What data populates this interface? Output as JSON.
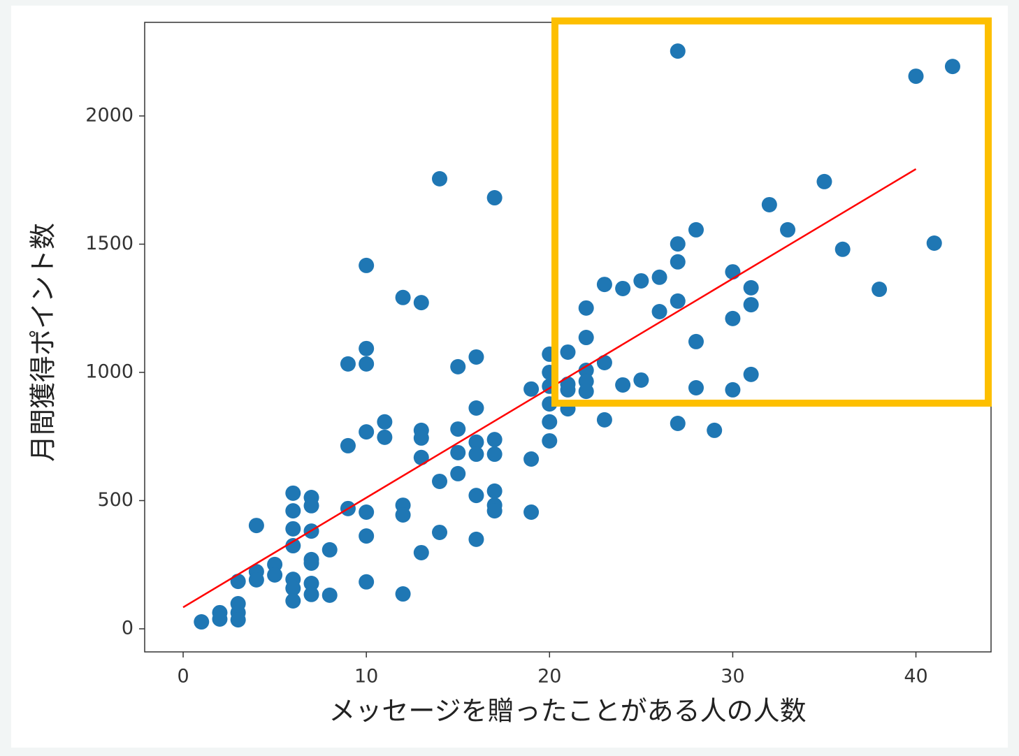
{
  "chart_data": {
    "type": "scatter",
    "xlabel": "メッセージを贈ったことがある人の人数",
    "ylabel": "月間獲得ポイント数",
    "xlim": [
      -2.1,
      44.1
    ],
    "ylim": [
      -90,
      2365
    ],
    "xticks": [
      0,
      10,
      20,
      30,
      40
    ],
    "yticks": [
      0,
      500,
      1000,
      1500,
      2000
    ],
    "points": {
      "color": "#1f77b4",
      "x": [
        1,
        2,
        2,
        3,
        3,
        3,
        3,
        4,
        4,
        4,
        5,
        5,
        6,
        6,
        6,
        6,
        6,
        6,
        6,
        7,
        7,
        7,
        7,
        7,
        7,
        7,
        8,
        8,
        9,
        9,
        9,
        10,
        10,
        10,
        10,
        10,
        10,
        10,
        11,
        11,
        12,
        12,
        12,
        12,
        13,
        13,
        13,
        13,
        13,
        14,
        14,
        14,
        15,
        15,
        15,
        15,
        16,
        16,
        16,
        16,
        16,
        16,
        17,
        17,
        17,
        17,
        17,
        17,
        19,
        19,
        19,
        20,
        20,
        20,
        20,
        20,
        20,
        21,
        21,
        21,
        21,
        22,
        22,
        22,
        22,
        22,
        23,
        23,
        23,
        24,
        24,
        25,
        25,
        26,
        26,
        27,
        27,
        27,
        27,
        27,
        28,
        28,
        28,
        29,
        30,
        30,
        30,
        31,
        31,
        31,
        32,
        33,
        35,
        36,
        38,
        40,
        41,
        42
      ],
      "y": [
        27,
        63,
        38,
        98,
        63,
        35,
        185,
        403,
        223,
        191,
        251,
        210,
        529,
        460,
        390,
        324,
        193,
        158,
        109,
        512,
        480,
        381,
        270,
        256,
        177,
        134,
        308,
        131,
        1033,
        714,
        469,
        1417,
        1093,
        1033,
        768,
        455,
        362,
        183,
        807,
        747,
        1292,
        482,
        444,
        136,
        1272,
        774,
        744,
        668,
        297,
        1755,
        575,
        376,
        1022,
        779,
        687,
        605,
        1060,
        861,
        728,
        681,
        520,
        349,
        1681,
        738,
        681,
        537,
        482,
        460,
        935,
        662,
        455,
        1071,
        1000,
        946,
        877,
        807,
        733,
        1079,
        954,
        932,
        858,
        1251,
        1136,
        1008,
        965,
        926,
        1343,
        1038,
        815,
        1327,
        951,
        1357,
        970,
        1371,
        1237,
        2253,
        1501,
        1431,
        1278,
        801,
        1556,
        1120,
        940,
        774,
        1392,
        1210,
        932,
        1330,
        1264,
        992,
        1654,
        1556,
        1744,
        1480,
        1324,
        2155,
        1504,
        2193
      ]
    },
    "fit_line": {
      "color": "#ff0000",
      "x": [
        0,
        40
      ],
      "y": [
        84,
        1793
      ]
    }
  }
}
